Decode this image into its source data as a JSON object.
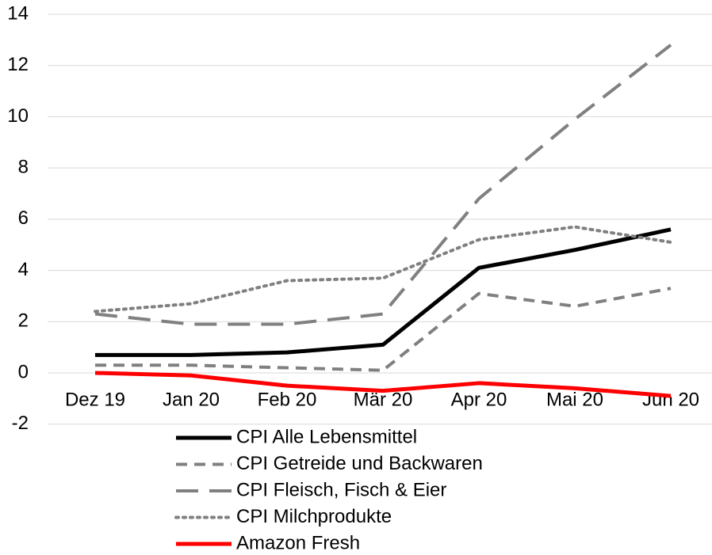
{
  "chart_data": {
    "type": "line",
    "categories": [
      "Dez 19",
      "Jan 20",
      "Feb 20",
      "Mär 20",
      "Apr 20",
      "Mai 20",
      "Jun 20"
    ],
    "series": [
      {
        "name": "CPI Alle Lebensmittel",
        "color": "#000000",
        "style": "solid",
        "values": [
          0.7,
          0.7,
          0.8,
          1.1,
          4.1,
          4.8,
          5.6
        ]
      },
      {
        "name": "CPI Getreide und Backwaren",
        "color": "#808080",
        "style": "dash",
        "values": [
          0.3,
          0.3,
          0.2,
          0.1,
          3.1,
          2.6,
          3.3
        ]
      },
      {
        "name": "CPI Fleisch, Fisch & Eier",
        "color": "#808080",
        "style": "longdash",
        "values": [
          2.3,
          1.9,
          1.9,
          2.3,
          6.8,
          9.9,
          12.8
        ]
      },
      {
        "name": "CPI Milchprodukte",
        "color": "#808080",
        "style": "dot",
        "values": [
          2.4,
          2.7,
          3.6,
          3.7,
          5.2,
          5.7,
          5.1
        ]
      },
      {
        "name": "Amazon Fresh",
        "color": "#ff0000",
        "style": "solid",
        "values": [
          0.0,
          -0.1,
          -0.5,
          -0.7,
          -0.4,
          -0.6,
          -0.9
        ]
      }
    ],
    "ylim": [
      -2,
      14
    ],
    "yticks": [
      -2,
      0,
      2,
      4,
      6,
      8,
      10,
      12,
      14
    ],
    "grid": true,
    "legend": "bottom"
  }
}
